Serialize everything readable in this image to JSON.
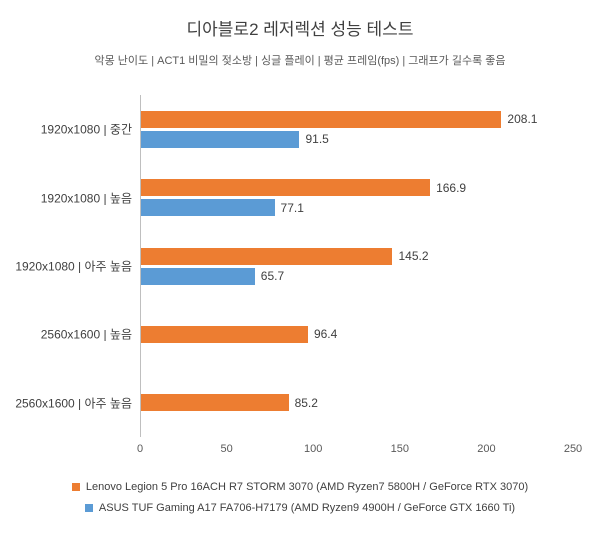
{
  "chart": {
    "title": "디아블로2 레저렉션 성능 테스트",
    "subtitle": "악몽 난이도 | ACT1 비밀의 젖소방 | 싱글 플레이 | 평균 프레임(fps) | 그래프가 길수록 좋음"
  },
  "chart_data": {
    "type": "bar",
    "orientation": "horizontal",
    "title": "디아블로2 레저렉션 성능 테스트",
    "subtitle": "악몽 난이도 | ACT1 비밀의 젖소방 | 싱글 플레이 | 평균 프레임(fps) | 그래프가 길수록 좋음",
    "categories": [
      "1920x1080 | 중간",
      "1920x1080 | 높음",
      "1920x1080 | 아주 높음",
      "2560x1600 | 높음",
      "2560x1600 | 아주 높음"
    ],
    "series": [
      {
        "name": "Lenovo Legion 5 Pro 16ACH R7 STORM 3070 (AMD Ryzen7 5800H / GeForce RTX 3070)",
        "color": "#ED7D31",
        "values": [
          208.1,
          166.9,
          145.2,
          96.4,
          85.2
        ]
      },
      {
        "name": "ASUS TUF Gaming A17 FA706-H7179 (AMD Ryzen9 4900H / GeForce GTX 1660 Ti)",
        "color": "#5B9BD5",
        "values": [
          91.5,
          77.1,
          65.7,
          null,
          null
        ]
      }
    ],
    "xlabel": "",
    "ylabel": "",
    "xlim": [
      0,
      250
    ],
    "xticks": [
      0,
      50,
      100,
      150,
      200,
      250
    ],
    "grid": false,
    "legend_position": "bottom"
  }
}
